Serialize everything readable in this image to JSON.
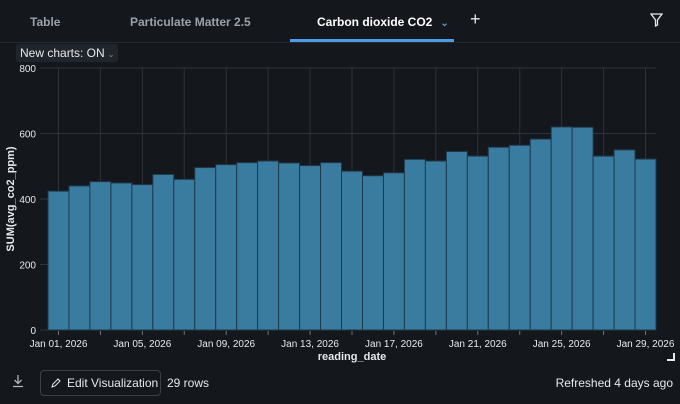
{
  "tabs": [
    {
      "label": "Table",
      "active": false
    },
    {
      "label": "Particulate Matter 2.5",
      "active": false
    },
    {
      "label": "Carbon dioxide CO2",
      "active": true
    }
  ],
  "toolbar": {
    "add_icon": "plus-icon",
    "filter_icon": "filter-icon",
    "new_charts": "New charts: ON"
  },
  "chart_data": {
    "type": "bar",
    "xlabel": "reading_date",
    "ylabel": "SUM(avg_co2_ppm)",
    "ylim": [
      0,
      800
    ],
    "yticks": [
      "0",
      "200",
      "400",
      "600",
      "800"
    ],
    "grid": true,
    "color": "#3a7ca0",
    "categories": [
      "Jan 01, 2026",
      "Jan 02, 2026",
      "Jan 03, 2026",
      "Jan 04, 2026",
      "Jan 05, 2026",
      "Jan 06, 2026",
      "Jan 07, 2026",
      "Jan 08, 2026",
      "Jan 09, 2026",
      "Jan 10, 2026",
      "Jan 11, 2026",
      "Jan 12, 2026",
      "Jan 13, 2026",
      "Jan 14, 2026",
      "Jan 15, 2026",
      "Jan 16, 2026",
      "Jan 17, 2026",
      "Jan 18, 2026",
      "Jan 19, 2026",
      "Jan 20, 2026",
      "Jan 21, 2026",
      "Jan 22, 2026",
      "Jan 23, 2026",
      "Jan 24, 2026",
      "Jan 25, 2026",
      "Jan 26, 2026",
      "Jan 27, 2026",
      "Jan 28, 2026",
      "Jan 29, 2026"
    ],
    "xtick_labels": [
      "Jan 01, 2026",
      "Jan 05, 2026",
      "Jan 09, 2026",
      "Jan 13, 2026",
      "Jan 17, 2026",
      "Jan 21, 2026",
      "Jan 25, 2026",
      "Jan 29, 2026"
    ],
    "values": [
      424,
      440,
      453,
      449,
      444,
      475,
      460,
      496,
      505,
      511,
      516,
      510,
      502,
      511,
      485,
      471,
      480,
      521,
      516,
      545,
      531,
      558,
      564,
      583,
      620,
      619,
      531,
      550,
      522
    ]
  },
  "footer": {
    "edit_label": "Edit Visualization",
    "rows": "29 rows",
    "refreshed": "Refreshed 4 days ago"
  }
}
